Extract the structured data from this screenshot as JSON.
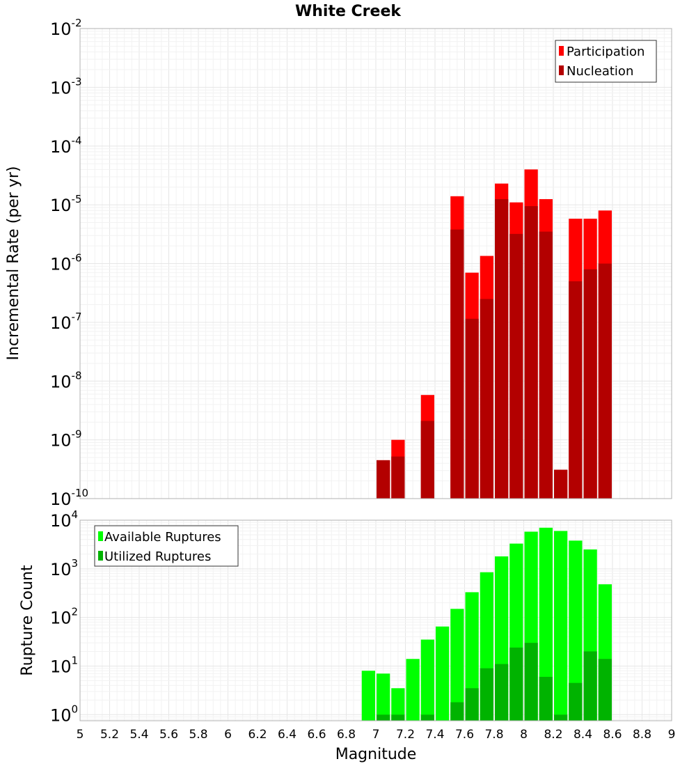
{
  "chart_data": [
    {
      "type": "bar",
      "title": "White Creek",
      "xlabel": "",
      "ylabel": "Incremental Rate (per yr)",
      "y_scale": "log",
      "ylim": [
        1e-10,
        0.01
      ],
      "xlim": [
        5,
        9
      ],
      "bar_width": 0.1,
      "legend_position": "top-right",
      "y_ticks": [
        {
          "base": "10",
          "exp": "-10",
          "value": 1e-10
        },
        {
          "base": "10",
          "exp": "-9",
          "value": 1e-09
        },
        {
          "base": "10",
          "exp": "-8",
          "value": 1e-08
        },
        {
          "base": "10",
          "exp": "-7",
          "value": 1e-07
        },
        {
          "base": "10",
          "exp": "-6",
          "value": 1e-06
        },
        {
          "base": "10",
          "exp": "-5",
          "value": 1e-05
        },
        {
          "base": "10",
          "exp": "-4",
          "value": 0.0001
        },
        {
          "base": "10",
          "exp": "-3",
          "value": 0.001
        },
        {
          "base": "10",
          "exp": "-2",
          "value": 0.01
        }
      ],
      "series": [
        {
          "name": "Participation",
          "color": "#ff0000",
          "x": [
            7.05,
            7.15,
            7.35,
            7.55,
            7.65,
            7.75,
            7.85,
            7.95,
            8.05,
            8.15,
            8.25,
            8.35,
            8.45,
            8.55
          ],
          "values": [
            4.5e-10,
            1e-09,
            5.8e-09,
            1.4e-05,
            7e-07,
            1.35e-06,
            2.3e-05,
            1.1e-05,
            4e-05,
            1.25e-05,
            3.1e-10,
            5.8e-06,
            5.8e-06,
            8e-06
          ]
        },
        {
          "name": "Nucleation",
          "color": "#b30000",
          "x": [
            7.05,
            7.15,
            7.35,
            7.55,
            7.65,
            7.75,
            7.85,
            7.95,
            8.05,
            8.15,
            8.25,
            8.35,
            8.45,
            8.55
          ],
          "values": [
            4.5e-10,
            5.2e-10,
            2.1e-09,
            3.8e-06,
            1.15e-07,
            2.5e-07,
            1.25e-05,
            3.2e-06,
            9.5e-06,
            3.5e-06,
            3.1e-10,
            5e-07,
            8e-07,
            1e-06
          ]
        }
      ]
    },
    {
      "type": "bar",
      "title": "",
      "xlabel": "Magnitude",
      "ylabel": "Rupture Count",
      "y_scale": "log",
      "ylim": [
        0.75,
        10000.0
      ],
      "xlim": [
        5,
        9
      ],
      "bar_width": 0.1,
      "legend_position": "top-left",
      "x_ticks": [
        "5",
        "5.2",
        "5.4",
        "5.6",
        "5.8",
        "6",
        "6.2",
        "6.4",
        "6.6",
        "6.8",
        "7",
        "7.2",
        "7.4",
        "7.6",
        "7.8",
        "8",
        "8.2",
        "8.4",
        "8.6",
        "8.8",
        "9"
      ],
      "y_ticks": [
        {
          "base": "10",
          "exp": "0",
          "value": 1
        },
        {
          "base": "10",
          "exp": "1",
          "value": 10
        },
        {
          "base": "10",
          "exp": "2",
          "value": 100
        },
        {
          "base": "10",
          "exp": "3",
          "value": 1000
        },
        {
          "base": "10",
          "exp": "4",
          "value": 10000
        }
      ],
      "series": [
        {
          "name": "Available Ruptures",
          "color": "#00ff00",
          "x": [
            6.95,
            7.05,
            7.15,
            7.25,
            7.35,
            7.45,
            7.55,
            7.65,
            7.75,
            7.85,
            7.95,
            8.05,
            8.15,
            8.25,
            8.35,
            8.45,
            8.55
          ],
          "values": [
            8,
            7,
            3.5,
            14,
            35,
            65,
            150,
            330,
            850,
            1800,
            3300,
            5800,
            7000,
            6000,
            3800,
            2500,
            480
          ]
        },
        {
          "name": "Utilized Ruptures",
          "color": "#00b300",
          "x": [
            7.05,
            7.15,
            7.35,
            7.55,
            7.65,
            7.75,
            7.85,
            7.95,
            8.05,
            8.15,
            8.25,
            8.35,
            8.45,
            8.55
          ],
          "values": [
            1,
            1,
            1,
            1.8,
            3.5,
            9,
            11,
            24,
            30,
            6,
            1,
            4.5,
            20,
            14
          ]
        }
      ]
    }
  ]
}
